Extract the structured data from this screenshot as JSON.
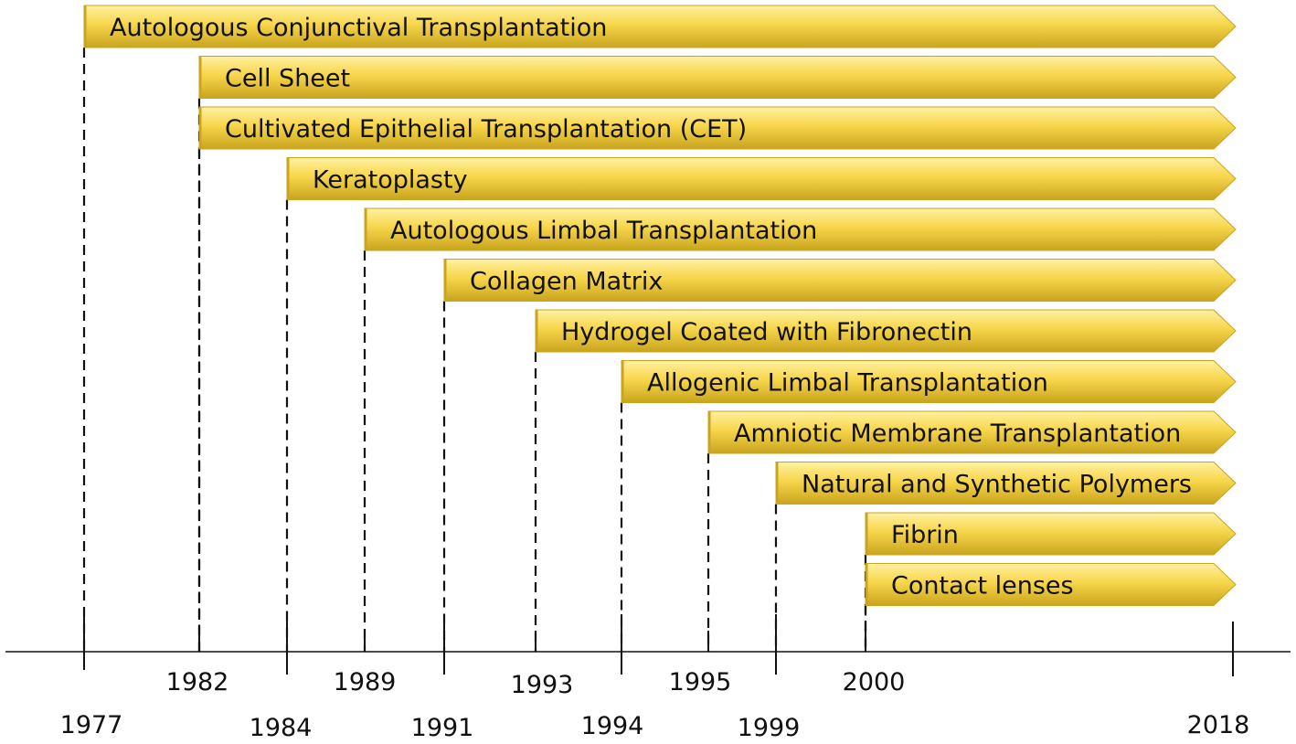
{
  "chart_data": {
    "type": "timeline",
    "end_year": "2018",
    "bars": [
      {
        "label": "Autologous Conjunctival Transplantation",
        "start": "1977"
      },
      {
        "label": "Cell Sheet",
        "start": "1982"
      },
      {
        "label": "Cultivated Epithelial Transplantation (CET)",
        "start": "1982"
      },
      {
        "label": "Keratoplasty",
        "start": "1984"
      },
      {
        "label": "Autologous Limbal Transplantation",
        "start": "1989"
      },
      {
        "label": "Collagen Matrix",
        "start": "1991"
      },
      {
        "label": "Hydrogel Coated with Fibronectin",
        "start": "1993"
      },
      {
        "label": "Allogenic Limbal Transplantation",
        "start": "1994"
      },
      {
        "label": "Amniotic Membrane Transplantation",
        "start": "1995"
      },
      {
        "label": "Natural and Synthetic Polymers",
        "start": "1999"
      },
      {
        "label": "Fibrin",
        "start": "2000"
      },
      {
        "label": "Contact lenses",
        "start": "2000"
      }
    ],
    "year_labels": [
      "1977",
      "1982",
      "1984",
      "1989",
      "1991",
      "1993",
      "1994",
      "1995",
      "1999",
      "2000",
      "2018"
    ],
    "colors": {
      "bar_fill": "#F7D64B",
      "bar_highlight": "#FFF0A0",
      "bar_shadow": "#C9A41E",
      "lines": "#111111"
    }
  }
}
